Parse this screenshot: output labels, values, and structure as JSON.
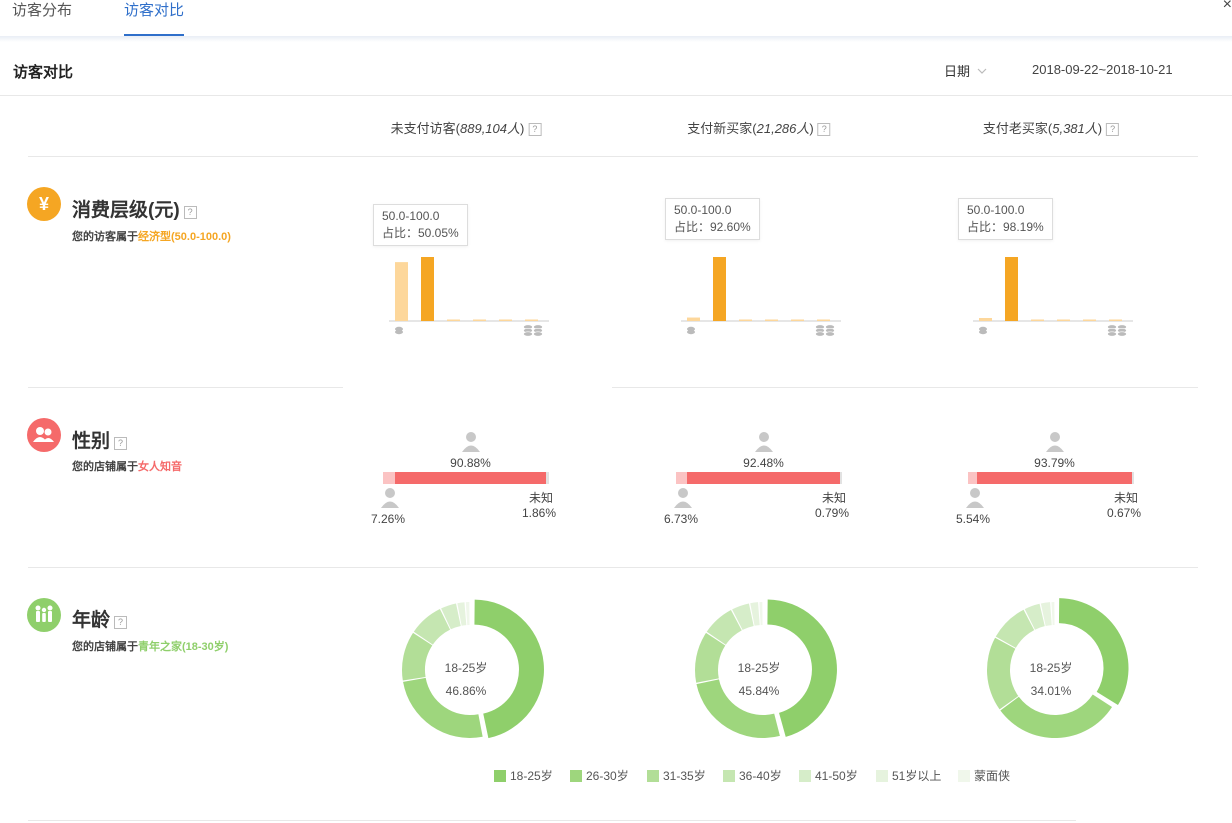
{
  "tabs": [
    {
      "label": "访客分布",
      "active": false
    },
    {
      "label": "访客对比",
      "active": true
    }
  ],
  "close_symbol": "×",
  "header": {
    "title": "访客对比",
    "date_label": "日期",
    "date_range": "2018-09-22~2018-10-21"
  },
  "columns": [
    {
      "name": "未支付访客",
      "count": "889,104人"
    },
    {
      "name": "支付新买家",
      "count": "21,286人"
    },
    {
      "name": "支付老买家",
      "count": "5,381人"
    }
  ],
  "qmark": "?",
  "colors": {
    "accent_blue": "#2f6fca",
    "orange": "#f5a623",
    "orange_light": "#fdd79b",
    "red": "#f56a6a",
    "red_light": "#fbc3c3",
    "green": "#8fcf6b"
  },
  "spending": {
    "icon": "yen-icon",
    "icon_char": "¥",
    "title": "消费层级(元)",
    "desc_prefix": "您的访客属于",
    "desc_highlight": "经济型(50.0-100.0)",
    "charts": [
      {
        "tooltip_range": "50.0-100.0",
        "tooltip_share": "占比：50.05%",
        "bars": [
          0.46,
          0.5,
          0.005,
          0.005,
          0.005,
          0.005
        ]
      },
      {
        "tooltip_range": "50.0-100.0",
        "tooltip_share": "占比：92.60%",
        "bars": [
          0.05,
          0.926,
          0.005,
          0.005,
          0.005,
          0.005
        ]
      },
      {
        "tooltip_range": "50.0-100.0",
        "tooltip_share": "占比：98.19%",
        "bars": [
          0.015,
          0.982,
          0.005,
          0.005,
          0.005,
          0.005
        ]
      }
    ]
  },
  "gender": {
    "icon": "users-icon",
    "title": "性别",
    "desc_prefix": "您的店铺属于",
    "desc_highlight": "女人知音",
    "unknown_label": "未知",
    "charts": [
      {
        "female": "90.88%",
        "male": "7.26%",
        "unknown": "1.86%",
        "female_v": 90.88,
        "male_v": 7.26,
        "unknown_v": 1.86
      },
      {
        "female": "92.48%",
        "male": "6.73%",
        "unknown": "0.79%",
        "female_v": 92.48,
        "male_v": 6.73,
        "unknown_v": 0.79
      },
      {
        "female": "93.79%",
        "male": "5.54%",
        "unknown": "0.67%",
        "female_v": 93.79,
        "male_v": 5.54,
        "unknown_v": 0.67
      }
    ]
  },
  "age": {
    "icon": "family-icon",
    "title": "年龄",
    "desc_prefix": "您的店铺属于",
    "desc_highlight": "青年之家(18-30岁)",
    "charts": [
      {
        "center_label": "18-25岁",
        "center_value": "46.86%",
        "values": [
          46.86,
          25.5,
          12.0,
          8.5,
          4.0,
          2.0,
          1.14
        ]
      },
      {
        "center_label": "18-25岁",
        "center_value": "45.84%",
        "values": [
          45.84,
          26.0,
          12.5,
          8.0,
          4.5,
          2.16,
          1.0
        ]
      },
      {
        "center_label": "18-25岁",
        "center_value": "34.01%",
        "values": [
          34.01,
          31.0,
          18.0,
          9.5,
          4.0,
          2.5,
          0.99
        ]
      }
    ],
    "legend": [
      {
        "label": "18-25岁",
        "color": "#8fcf6b"
      },
      {
        "label": "26-30岁",
        "color": "#9ed67d"
      },
      {
        "label": "31-35岁",
        "color": "#b2de97"
      },
      {
        "label": "36-40岁",
        "color": "#c5e6b1"
      },
      {
        "label": "41-50岁",
        "color": "#d6edc9"
      },
      {
        "label": "51岁以上",
        "color": "#e6f3de"
      },
      {
        "label": "蒙面侠",
        "color": "#f0f7eb"
      }
    ]
  }
}
